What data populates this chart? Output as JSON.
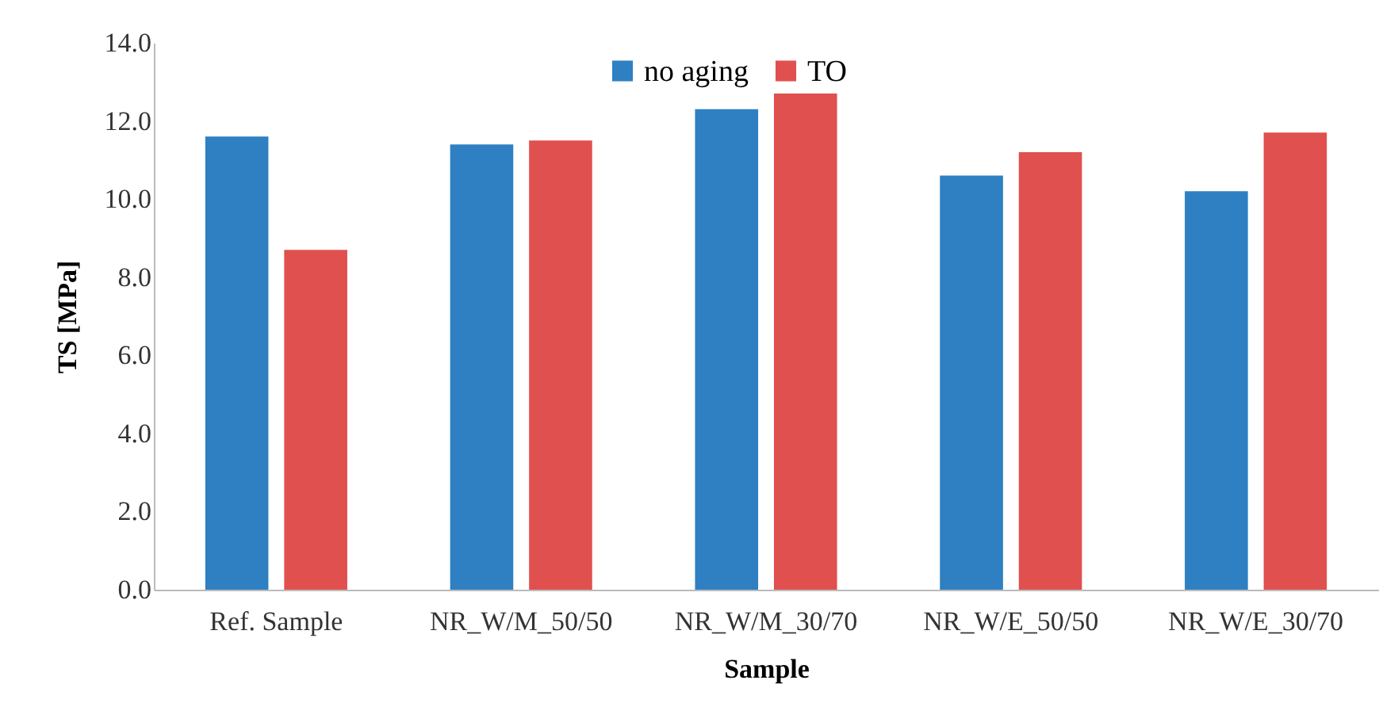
{
  "chart_data": {
    "type": "bar",
    "xlabel": "Sample",
    "ylabel": "TS [MPa]",
    "categories": [
      "Ref. Sample",
      "NR_W/M_50/50",
      "NR_W/M_30/70",
      "NR_W/E_50/50",
      "NR_W/E_30/70"
    ],
    "series": [
      {
        "name": "no aging",
        "color": "#2e80c2",
        "values": [
          11.6,
          11.4,
          12.3,
          10.6,
          10.2
        ]
      },
      {
        "name": "TO",
        "color": "#e0504e",
        "values": [
          8.7,
          11.5,
          12.7,
          11.2,
          11.7
        ]
      }
    ],
    "ylim": [
      0,
      14
    ],
    "yticks": [
      {
        "value": 0,
        "label": "0.0"
      },
      {
        "value": 2,
        "label": "2.0"
      },
      {
        "value": 4,
        "label": "4.0"
      },
      {
        "value": 6,
        "label": "6.0"
      },
      {
        "value": 8,
        "label": "8.0"
      },
      {
        "value": 10,
        "label": "10.0"
      },
      {
        "value": 12,
        "label": "12.0"
      },
      {
        "value": 14,
        "label": "14.0"
      }
    ],
    "grid": false,
    "legend": "top"
  }
}
